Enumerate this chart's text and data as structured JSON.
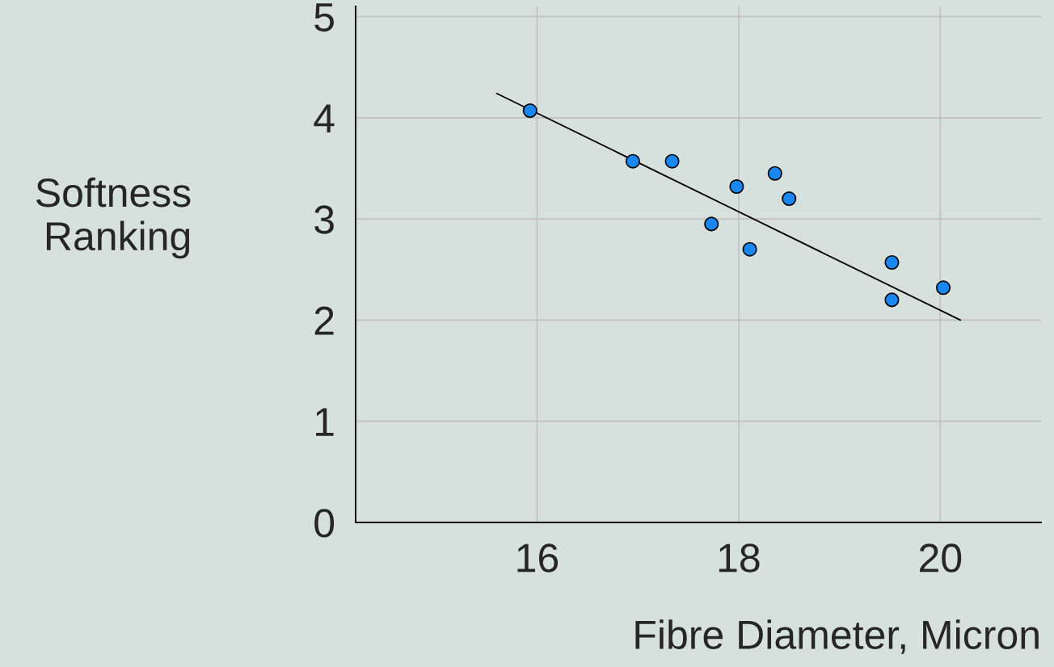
{
  "chart_data": {
    "type": "scatter",
    "xlabel": "Fibre Diameter, Micron",
    "ylabel": "Softness\nRanking",
    "xlim": [
      14.2,
      21.0
    ],
    "xticks": [
      16,
      18,
      20
    ],
    "ylim": [
      0,
      5.1
    ],
    "yticks": [
      0,
      1,
      2,
      3,
      4,
      5
    ],
    "grid": true,
    "series": [
      {
        "marker": "circle",
        "color": "#1a86f0",
        "x": [
          15.93,
          16.95,
          17.34,
          17.73,
          17.98,
          18.11,
          18.36,
          18.5,
          19.52,
          19.52,
          20.03
        ],
        "values": [
          4.07,
          3.57,
          3.57,
          2.95,
          3.32,
          2.7,
          3.45,
          3.2,
          2.57,
          2.2,
          2.32
        ]
      },
      {
        "type": "line",
        "marker": "none",
        "color": "#000000",
        "x": [
          15.6,
          20.2
        ],
        "values": [
          4.24,
          2.0
        ]
      }
    ]
  }
}
